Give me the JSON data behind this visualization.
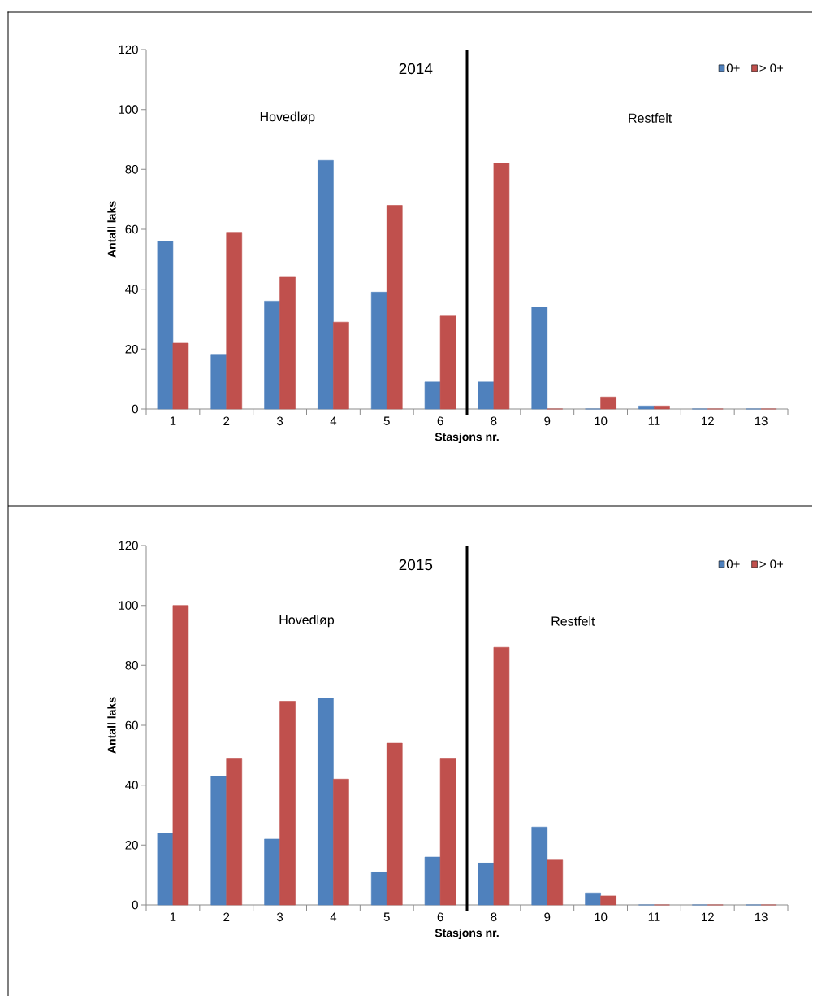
{
  "chart_data": [
    {
      "type": "bar",
      "title": "2014",
      "xlabel": "Stasjons nr.",
      "ylabel": "Antall laks",
      "categories": [
        "1",
        "2",
        "3",
        "4",
        "5",
        "6",
        "8",
        "9",
        "10",
        "11",
        "12",
        "13"
      ],
      "series": [
        {
          "name": "0+",
          "color": "#4f81bd",
          "values": [
            56,
            18,
            36,
            83,
            39,
            9,
            9,
            34,
            0,
            1,
            0,
            0
          ]
        },
        {
          "name": "> 0+",
          "color": "#c0504d",
          "values": [
            22,
            59,
            44,
            29,
            68,
            31,
            82,
            0,
            4,
            1,
            0,
            0
          ]
        }
      ],
      "ylim": [
        0,
        120
      ],
      "yticks": [
        0,
        20,
        40,
        60,
        80,
        100,
        120
      ],
      "legend": "top right",
      "annotations": [
        "Hovedløp",
        "Restfelt"
      ]
    },
    {
      "type": "bar",
      "title": "2015",
      "xlabel": "Stasjons nr.",
      "ylabel": "Antall laks",
      "categories": [
        "1",
        "2",
        "3",
        "4",
        "5",
        "6",
        "8",
        "9",
        "10",
        "11",
        "12",
        "13"
      ],
      "series": [
        {
          "name": "0+",
          "color": "#4f81bd",
          "values": [
            24,
            43,
            22,
            69,
            11,
            16,
            14,
            26,
            4,
            0,
            0,
            0
          ]
        },
        {
          "name": "> 0+",
          "color": "#c0504d",
          "values": [
            100,
            49,
            68,
            42,
            54,
            49,
            86,
            15,
            3,
            0,
            0,
            0
          ]
        }
      ],
      "ylim": [
        0,
        120
      ],
      "yticks": [
        0,
        20,
        40,
        60,
        80,
        100,
        120
      ],
      "legend": "top right",
      "annotations": [
        "Hovedløp",
        "Restfelt"
      ]
    }
  ]
}
